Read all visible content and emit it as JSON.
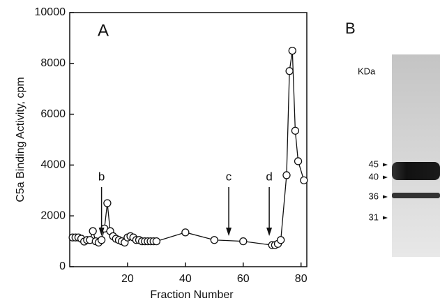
{
  "chart_data": {
    "type": "line",
    "panel": "A",
    "xlabel": "Fraction Number",
    "ylabel": "C5a Binding Activity, cpm",
    "x": [
      1,
      2,
      3,
      4,
      5,
      6,
      7,
      8,
      9,
      10,
      11,
      12,
      13,
      14,
      15,
      16,
      17,
      18,
      19,
      20,
      21,
      22,
      23,
      24,
      25,
      26,
      27,
      28,
      29,
      30,
      40,
      50,
      60,
      70,
      71,
      72,
      73,
      75,
      76,
      77,
      78,
      79,
      81
    ],
    "series": [
      {
        "color": "#111111",
        "values": [
          1150,
          1150,
          1150,
          1100,
          990,
          1050,
          1050,
          1400,
          1000,
          950,
          1050,
          1500,
          2500,
          1400,
          1200,
          1100,
          1050,
          1000,
          950,
          1150,
          1200,
          1150,
          1050,
          1050,
          1000,
          1000,
          1000,
          1000,
          1000,
          1000,
          1350,
          1050,
          1000,
          850,
          850,
          900,
          1050,
          3600,
          7700,
          8500,
          5350,
          4150,
          3400
        ]
      }
    ],
    "xlim": [
      0,
      82
    ],
    "xticks": [
      20,
      40,
      60,
      80
    ],
    "ylim": [
      0,
      10000
    ],
    "yticks": [
      0,
      2000,
      4000,
      6000,
      8000,
      10000
    ],
    "annotations": [
      {
        "text": "b",
        "x": 11
      },
      {
        "text": "c",
        "x": 55
      },
      {
        "text": "d",
        "x": 69
      }
    ]
  },
  "gel": {
    "panel": "B",
    "unit": "KDa",
    "markers": [
      "45",
      "40",
      "36",
      "31"
    ]
  }
}
